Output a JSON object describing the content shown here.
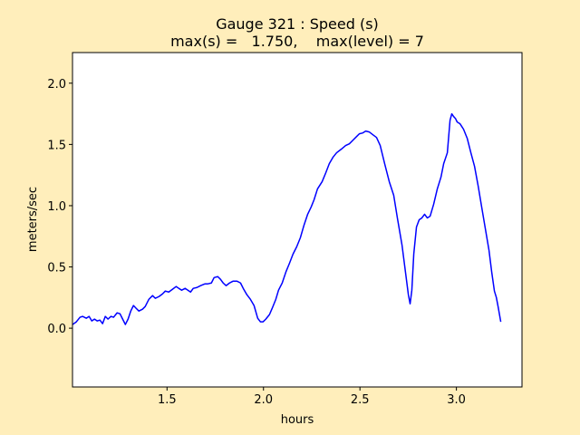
{
  "chart_data": {
    "type": "line",
    "title": "Gauge 321 : Speed (s)",
    "subtitle": "max(s) =   1.750,    max(level) = 7",
    "xlabel": "hours",
    "ylabel": "meters/sec",
    "color": "#0000ff",
    "x": [
      1.011,
      1.03,
      1.049,
      1.063,
      1.082,
      1.096,
      1.11,
      1.124,
      1.138,
      1.152,
      1.166,
      1.18,
      1.194,
      1.209,
      1.223,
      1.241,
      1.256,
      1.27,
      1.284,
      1.298,
      1.312,
      1.326,
      1.34,
      1.354,
      1.373,
      1.387,
      1.406,
      1.425,
      1.439,
      1.458,
      1.477,
      1.491,
      1.509,
      1.528,
      1.547,
      1.561,
      1.576,
      1.594,
      1.608,
      1.622,
      1.636,
      1.655,
      1.674,
      1.697,
      1.712,
      1.73,
      1.744,
      1.763,
      1.777,
      1.791,
      1.806,
      1.824,
      1.843,
      1.862,
      1.881,
      1.895,
      1.914,
      1.932,
      1.951,
      1.97,
      1.984,
      1.998,
      2.012,
      2.031,
      2.045,
      2.064,
      2.078,
      2.097,
      2.116,
      2.135,
      2.153,
      2.172,
      2.191,
      2.21,
      2.229,
      2.247,
      2.262,
      2.28,
      2.304,
      2.323,
      2.341,
      2.36,
      2.379,
      2.403,
      2.426,
      2.445,
      2.464,
      2.483,
      2.497,
      2.515,
      2.53,
      2.548,
      2.567,
      2.586,
      2.605,
      2.628,
      2.652,
      2.675,
      2.694,
      2.718,
      2.736,
      2.751,
      2.76,
      2.769,
      2.779,
      2.793,
      2.807,
      2.821,
      2.835,
      2.849,
      2.864,
      2.882,
      2.901,
      2.92,
      2.934,
      2.953,
      2.967,
      2.976,
      2.986,
      2.995,
      3.004,
      3.019,
      3.037,
      3.056,
      3.075,
      3.094,
      3.113,
      3.131,
      3.15,
      3.169,
      3.183,
      3.197,
      3.207,
      3.216,
      3.23
    ],
    "values": [
      0.03,
      0.052,
      0.089,
      0.096,
      0.081,
      0.096,
      0.059,
      0.074,
      0.059,
      0.066,
      0.037,
      0.096,
      0.074,
      0.096,
      0.089,
      0.125,
      0.118,
      0.074,
      0.03,
      0.074,
      0.14,
      0.185,
      0.162,
      0.14,
      0.155,
      0.177,
      0.236,
      0.266,
      0.244,
      0.258,
      0.28,
      0.303,
      0.295,
      0.317,
      0.34,
      0.325,
      0.31,
      0.325,
      0.31,
      0.295,
      0.325,
      0.332,
      0.347,
      0.362,
      0.362,
      0.369,
      0.413,
      0.421,
      0.399,
      0.369,
      0.347,
      0.369,
      0.384,
      0.384,
      0.369,
      0.325,
      0.273,
      0.236,
      0.185,
      0.081,
      0.052,
      0.052,
      0.074,
      0.111,
      0.162,
      0.236,
      0.31,
      0.369,
      0.458,
      0.531,
      0.605,
      0.664,
      0.738,
      0.841,
      0.93,
      0.989,
      1.048,
      1.137,
      1.196,
      1.269,
      1.343,
      1.395,
      1.432,
      1.461,
      1.491,
      1.505,
      1.535,
      1.565,
      1.587,
      1.594,
      1.609,
      1.602,
      1.579,
      1.557,
      1.491,
      1.343,
      1.196,
      1.085,
      0.9,
      0.679,
      0.458,
      0.273,
      0.199,
      0.31,
      0.605,
      0.826,
      0.885,
      0.9,
      0.93,
      0.9,
      0.915,
      1.011,
      1.137,
      1.233,
      1.343,
      1.432,
      1.697,
      1.75,
      1.727,
      1.712,
      1.683,
      1.668,
      1.624,
      1.55,
      1.432,
      1.321,
      1.159,
      0.989,
      0.812,
      0.635,
      0.458,
      0.303,
      0.251,
      0.177,
      0.052
    ],
    "xlim": [
      1.01,
      3.34
    ],
    "ylim": [
      -0.48,
      2.25
    ],
    "xticks": [
      1.5,
      {
        "value": 2,
        "label": "2.0"
      },
      2.5,
      {
        "value": 3,
        "label": "3.0"
      }
    ],
    "yticks": [
      {
        "value": 0,
        "label": "0.0"
      },
      0.5,
      {
        "value": 1,
        "label": "1.0"
      },
      1.5,
      {
        "value": 2,
        "label": "2.0"
      }
    ]
  }
}
